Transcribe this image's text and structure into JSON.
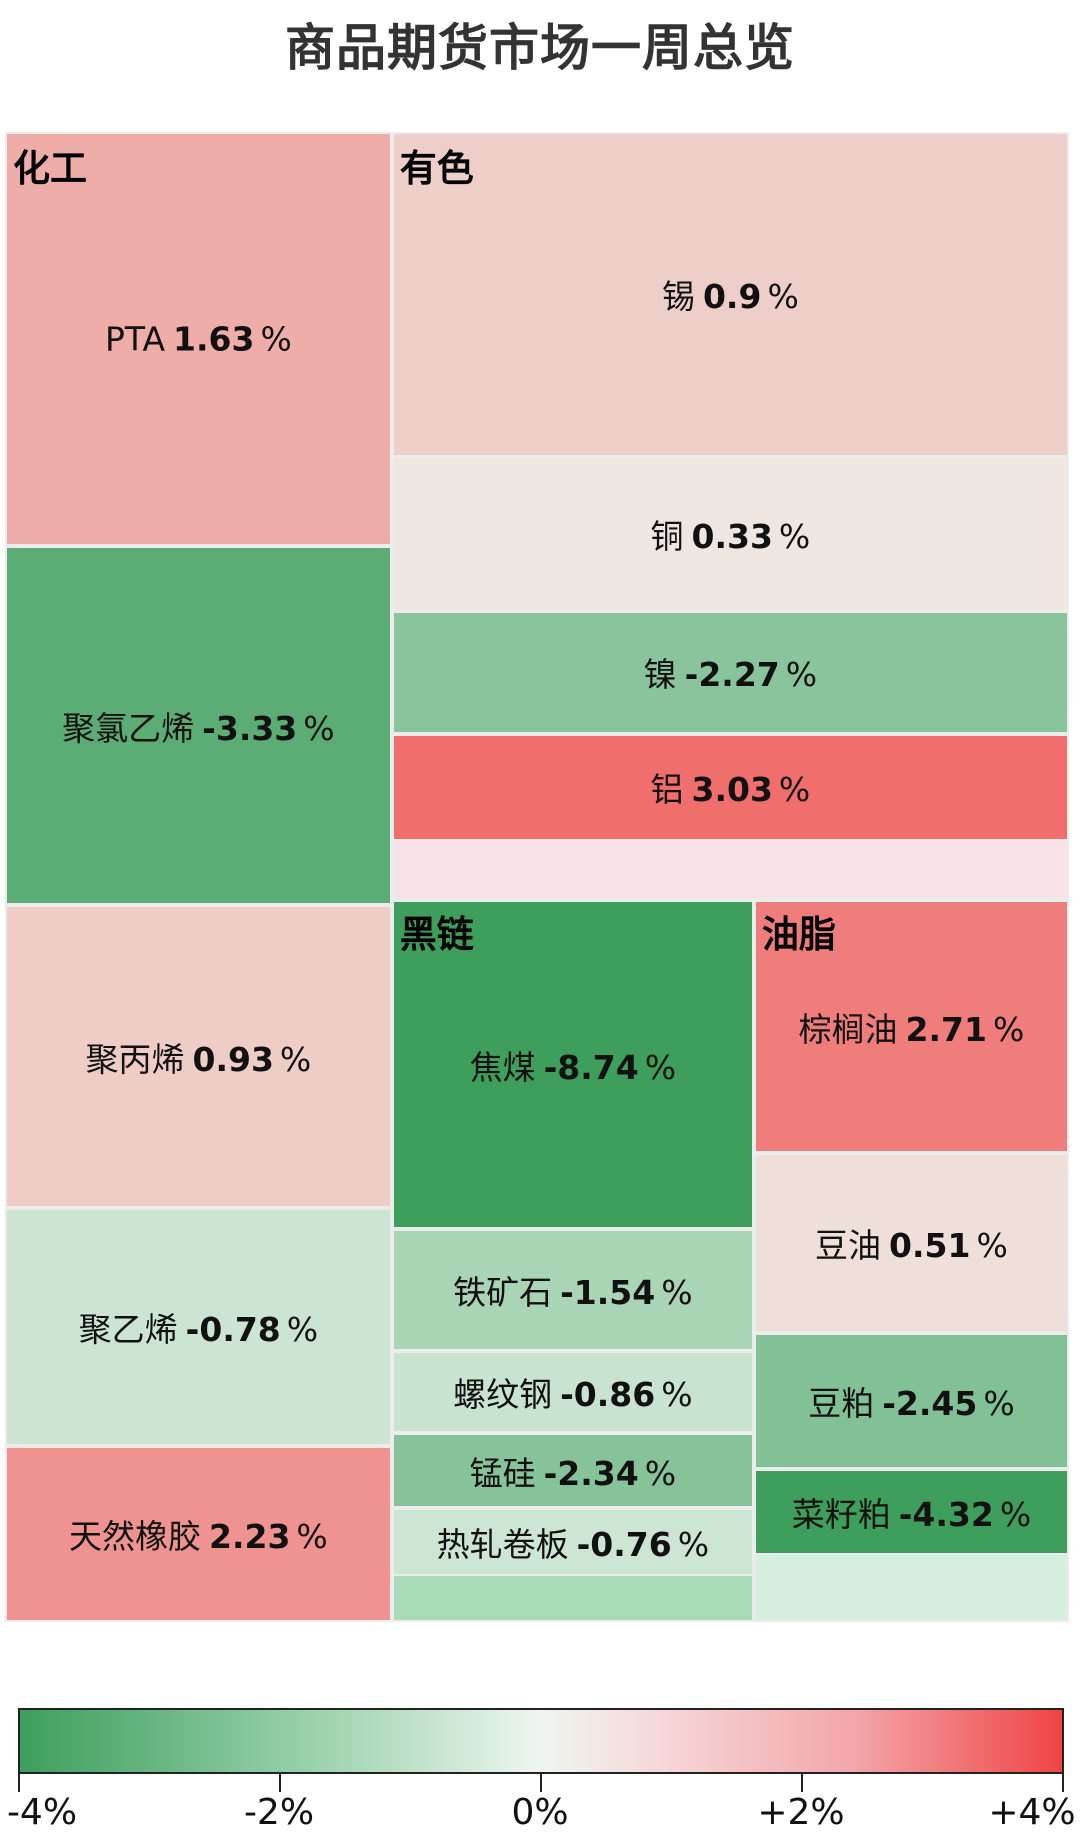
{
  "title": "商品期货市场一周总览",
  "chart_data": {
    "type": "treemap",
    "value_unit": "%",
    "groups": [
      {
        "name": "化工",
        "items": [
          {
            "name": "PTA",
            "value": 1.63
          },
          {
            "name": "聚氯乙烯",
            "value": -3.33
          },
          {
            "name": "聚丙烯",
            "value": 0.93
          },
          {
            "name": "聚乙烯",
            "value": -0.78
          },
          {
            "name": "天然橡胶",
            "value": 2.23
          }
        ]
      },
      {
        "name": "有色",
        "items": [
          {
            "name": "锡",
            "value": 0.9
          },
          {
            "name": "铜",
            "value": 0.33
          },
          {
            "name": "镍",
            "value": -2.27
          },
          {
            "name": "铝",
            "value": 3.03
          }
        ]
      },
      {
        "name": "黑链",
        "items": [
          {
            "name": "焦煤",
            "value": -8.74
          },
          {
            "name": "铁矿石",
            "value": -1.54
          },
          {
            "name": "螺纹钢",
            "value": -0.86
          },
          {
            "name": "锰硅",
            "value": -2.34
          },
          {
            "name": "热轧卷板",
            "value": -0.76
          }
        ]
      },
      {
        "name": "油脂",
        "items": [
          {
            "name": "棕榈油",
            "value": 2.71
          },
          {
            "name": "豆油",
            "value": 0.51
          },
          {
            "name": "豆粕",
            "value": -2.45
          },
          {
            "name": "菜籽粕",
            "value": -4.32
          }
        ]
      }
    ],
    "colorscale": {
      "min": -4,
      "max": 4,
      "tick_values": [
        -4,
        -2,
        0,
        2,
        4
      ],
      "tick_labels": [
        "-4%",
        "-2%",
        "0%",
        "+2%",
        "+4%"
      ],
      "negative_color": "#3e9e5c",
      "neutral_color": "#eef6ef",
      "positive_color": "#f04444"
    }
  }
}
